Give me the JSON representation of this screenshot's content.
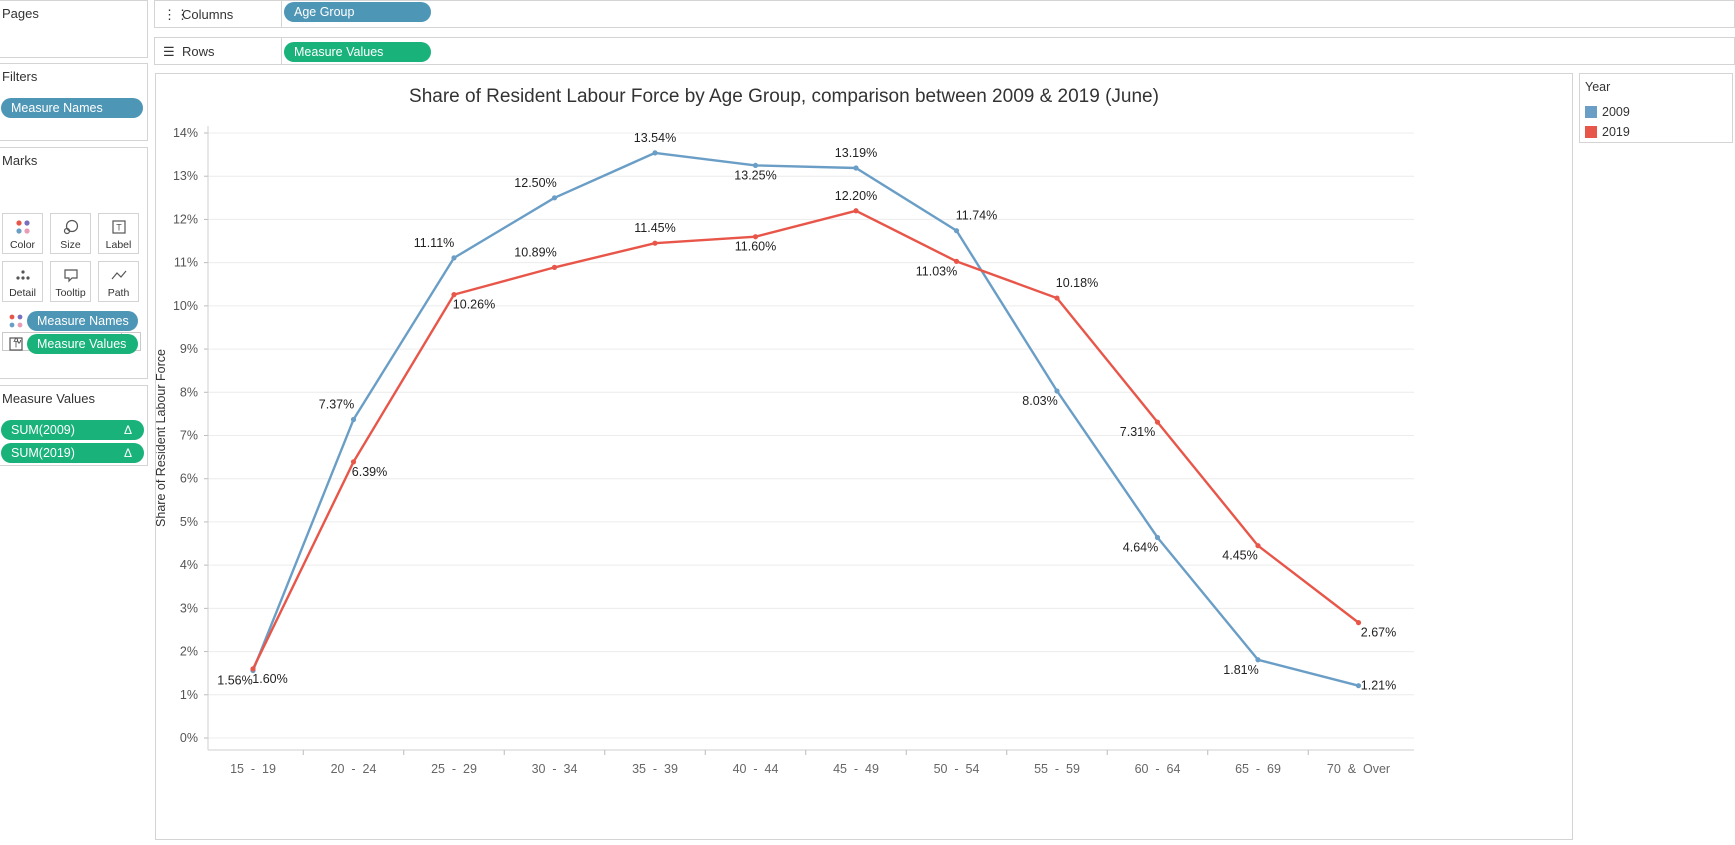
{
  "shelves": {
    "columns": {
      "label": "Columns",
      "pill": "Age Group"
    },
    "rows": {
      "label": "Rows",
      "pill": "Measure Values"
    }
  },
  "sidebar": {
    "pages": {
      "title": "Pages"
    },
    "filters": {
      "title": "Filters",
      "pills": [
        "Measure Names"
      ]
    },
    "marks": {
      "title": "Marks",
      "mark_type": "Line",
      "buttons": [
        "Color",
        "Size",
        "Label",
        "Detail",
        "Tooltip",
        "Path"
      ],
      "assigned": [
        {
          "icon": "color-dots-icon",
          "pill": "Measure Names"
        },
        {
          "icon": "label-text-icon",
          "pill": "Measure Values"
        }
      ]
    },
    "measure_values": {
      "title": "Measure Values",
      "pills": [
        "SUM(2009)",
        "SUM(2019)"
      ],
      "delta_symbol": "Δ"
    }
  },
  "legend": {
    "title": "Year",
    "items": [
      {
        "label": "2009",
        "color": "#6a9ec6"
      },
      {
        "label": "2019",
        "color": "#e8564a"
      }
    ]
  },
  "chart_data": {
    "type": "line",
    "title": "Share of Resident Labour Force by Age Group, comparison between 2009 & 2019  (June)",
    "ylabel": "Share of Resident Labour Force",
    "xlabel": "",
    "ylim": [
      0,
      14
    ],
    "yticks": [
      "0%",
      "1%",
      "2%",
      "3%",
      "4%",
      "5%",
      "6%",
      "7%",
      "8%",
      "9%",
      "10%",
      "11%",
      "12%",
      "13%",
      "14%"
    ],
    "grid": true,
    "categories": [
      "15  -  19",
      "20  -  24",
      "25  -  29",
      "30  -  34",
      "35  -  39",
      "40  -  44",
      "45  -  49",
      "50  -  54",
      "55  -  59",
      "60  -  64",
      "65  -  69",
      "70  &  Over"
    ],
    "series": [
      {
        "name": "2009",
        "color": "#6a9ec6",
        "values": [
          1.56,
          7.37,
          11.11,
          12.5,
          13.54,
          13.25,
          13.19,
          11.74,
          8.03,
          4.64,
          1.81,
          1.21
        ],
        "labels": [
          "1.56%",
          "7.37%",
          "11.11%",
          "12.50%",
          "13.54%",
          "13.25%",
          "13.19%",
          "11.74%",
          "8.03%",
          "4.64%",
          "1.81%",
          "1.21%"
        ]
      },
      {
        "name": "2019",
        "color": "#e8564a",
        "values": [
          1.6,
          6.39,
          10.26,
          10.89,
          11.45,
          11.6,
          12.2,
          11.03,
          10.18,
          7.31,
          4.45,
          2.67
        ],
        "labels": [
          "1.60%",
          "6.39%",
          "10.26%",
          "10.89%",
          "11.45%",
          "11.60%",
          "12.20%",
          "11.03%",
          "10.18%",
          "7.31%",
          "4.45%",
          "2.67%"
        ]
      }
    ]
  }
}
